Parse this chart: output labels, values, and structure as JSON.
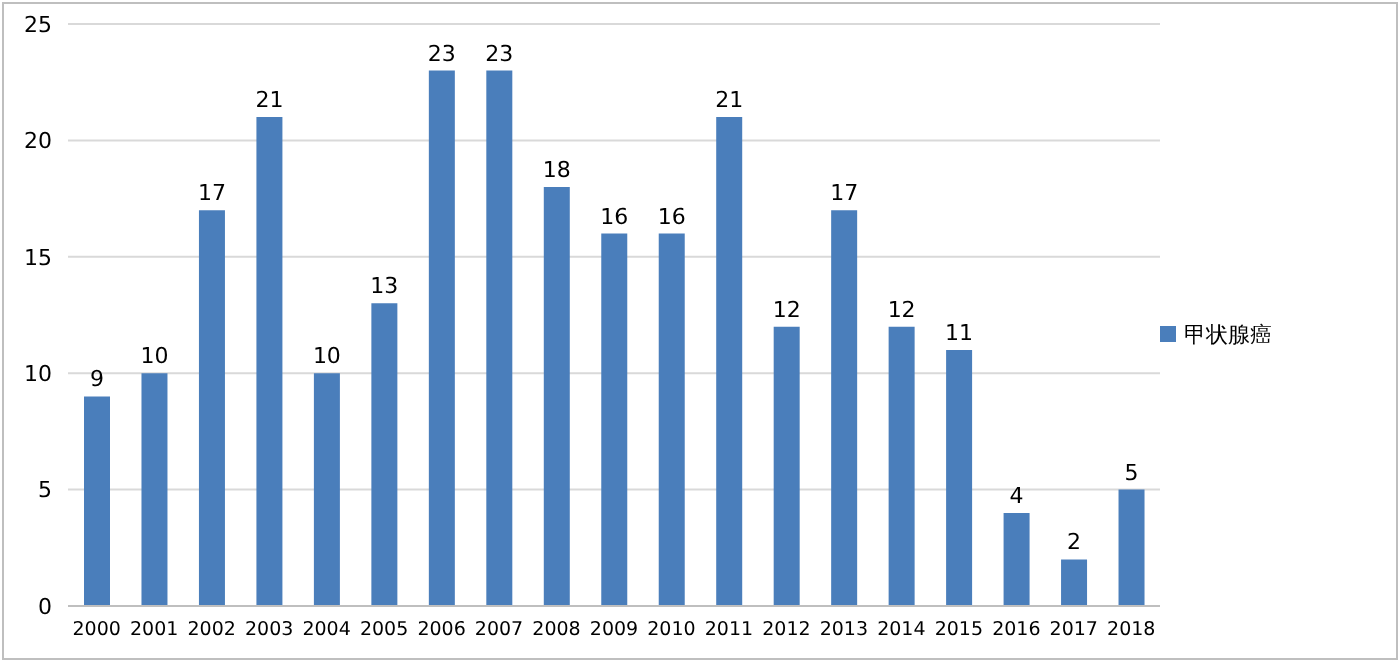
{
  "chart_data": {
    "type": "bar",
    "categories": [
      "2000",
      "2001",
      "2002",
      "2003",
      "2004",
      "2005",
      "2006",
      "2007",
      "2008",
      "2009",
      "2010",
      "2011",
      "2012",
      "2013",
      "2014",
      "2015",
      "2016",
      "2017",
      "2018"
    ],
    "series": [
      {
        "name": "甲状腺癌",
        "color": "#4a7ebb",
        "values": [
          9,
          10,
          17,
          21,
          10,
          13,
          23,
          23,
          18,
          16,
          16,
          21,
          12,
          17,
          12,
          11,
          4,
          2,
          5
        ]
      }
    ],
    "ylim": [
      0,
      25
    ],
    "yticks": [
      0,
      5,
      10,
      15,
      20,
      25
    ],
    "grid": "y",
    "legend": "right",
    "data_labels": true
  }
}
